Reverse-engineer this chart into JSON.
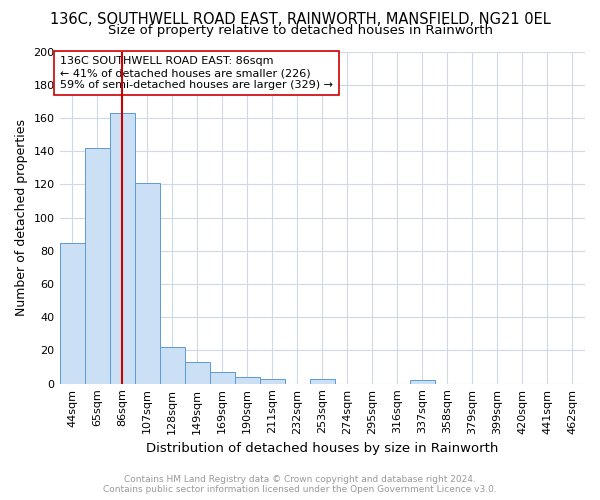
{
  "title": "136C, SOUTHWELL ROAD EAST, RAINWORTH, MANSFIELD, NG21 0EL",
  "subtitle": "Size of property relative to detached houses in Rainworth",
  "xlabel": "Distribution of detached houses by size in Rainworth",
  "ylabel": "Number of detached properties",
  "footer_line1": "Contains HM Land Registry data © Crown copyright and database right 2024.",
  "footer_line2": "Contains public sector information licensed under the Open Government Licence v3.0.",
  "bin_labels": [
    "44sqm",
    "65sqm",
    "86sqm",
    "107sqm",
    "128sqm",
    "149sqm",
    "169sqm",
    "190sqm",
    "211sqm",
    "232sqm",
    "253sqm",
    "274sqm",
    "295sqm",
    "316sqm",
    "337sqm",
    "358sqm",
    "379sqm",
    "399sqm",
    "420sqm",
    "441sqm",
    "462sqm"
  ],
  "bar_values": [
    85,
    142,
    163,
    121,
    22,
    13,
    7,
    4,
    3,
    0,
    3,
    0,
    0,
    0,
    2,
    0,
    0,
    0,
    0,
    0,
    0
  ],
  "bar_color": "#cce0f5",
  "bar_edge_color": "#5b9bd5",
  "grid_color": "#d0d8e8",
  "vline_x": 2.5,
  "vline_color": "#cc0000",
  "annotation_text": "136C SOUTHWELL ROAD EAST: 86sqm\n← 41% of detached houses are smaller (226)\n59% of semi-detached houses are larger (329) →",
  "annotation_box_color": "#ffffff",
  "annotation_box_edge": "#cc0000",
  "ylim": [
    0,
    200
  ],
  "yticks": [
    0,
    20,
    40,
    60,
    80,
    100,
    120,
    140,
    160,
    180,
    200
  ],
  "background_color": "#ffffff",
  "title_fontsize": 10.5,
  "subtitle_fontsize": 9.5,
  "xlabel_fontsize": 9.5,
  "ylabel_fontsize": 9.0,
  "tick_fontsize": 8.0,
  "footer_fontsize": 6.5,
  "annot_fontsize": 8.0
}
